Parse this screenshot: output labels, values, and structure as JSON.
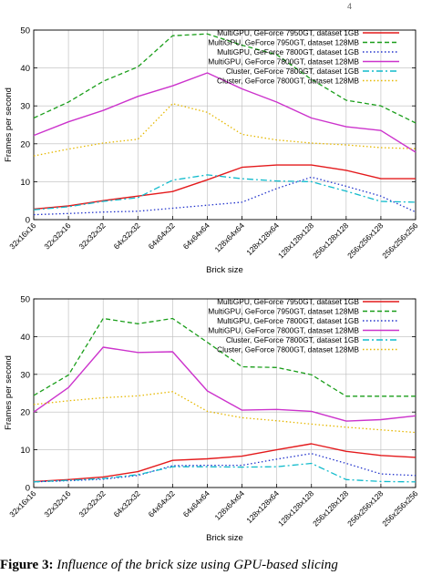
{
  "header": {
    "mark": "4"
  },
  "chart_data": [
    {
      "type": "line",
      "title": "",
      "xlabel": "Brick size",
      "ylabel": "Frames per second",
      "ylim": [
        0,
        50
      ],
      "yticks": [
        0,
        10,
        20,
        30,
        40,
        50
      ],
      "grid": true,
      "legend_position": "top-right",
      "categories": [
        "32x16x16",
        "32x32x16",
        "32x32x32",
        "64x32x32",
        "64x64x32",
        "64x64x64",
        "128x64x64",
        "128x128x64",
        "128x128x128",
        "256x128x128",
        "256x256x128",
        "256x256x256"
      ],
      "series": [
        {
          "name": "MultiGPU, GeForce 7950GT, dataset 1GB",
          "color": "#e41a1c",
          "dash": "solid",
          "values": [
            2.8,
            3.6,
            5.0,
            6.2,
            7.4,
            10.5,
            13.8,
            14.4,
            14.4,
            13.0,
            10.8,
            10.8
          ]
        },
        {
          "name": "MultiGPU, GeForce 7950GT, dataset 128MB",
          "color": "#1a9e1a",
          "dash": "dashed",
          "values": [
            26.8,
            31.0,
            36.5,
            40.3,
            48.5,
            49.0,
            46.0,
            43.5,
            37.0,
            31.5,
            30.0,
            25.5
          ]
        },
        {
          "name": "MultiGPU, GeForce 7800GT, dataset 1GB",
          "color": "#2233cc",
          "dash": "dotted",
          "values": [
            1.3,
            1.6,
            2.0,
            2.2,
            3.0,
            3.8,
            4.6,
            8.2,
            11.2,
            8.8,
            6.2,
            2.0
          ]
        },
        {
          "name": "MultiGPU, GeForce 7800GT, dataset 128MB",
          "color": "#cc33cc",
          "dash": "solid",
          "values": [
            22.2,
            25.8,
            28.8,
            32.5,
            35.3,
            38.7,
            34.5,
            31.0,
            26.8,
            24.5,
            23.5,
            17.8
          ]
        },
        {
          "name": "Cluster, GeForce 7800GT, dataset 1GB",
          "color": "#11bbcc",
          "dash": "dashdot",
          "values": [
            2.6,
            3.4,
            4.8,
            5.8,
            10.4,
            11.8,
            10.8,
            10.2,
            10.0,
            7.5,
            4.8,
            4.6
          ]
        },
        {
          "name": "Cluster, GeForce 7800GT, dataset 128MB",
          "color": "#e6b800",
          "dash": "dotted",
          "values": [
            16.8,
            18.6,
            20.2,
            21.2,
            30.6,
            28.3,
            22.5,
            21.0,
            20.2,
            19.7,
            19.0,
            18.7
          ]
        }
      ]
    },
    {
      "type": "line",
      "title": "",
      "xlabel": "Brick size",
      "ylabel": "Frames per second",
      "ylim": [
        0,
        50
      ],
      "yticks": [
        0,
        10,
        20,
        30,
        40,
        50
      ],
      "grid": true,
      "legend_position": "top-right",
      "categories": [
        "32x16x16",
        "32x32x16",
        "32x32x32",
        "64x32x32",
        "64x64x32",
        "64x64x64",
        "128x64x64",
        "128x128x64",
        "128x128x128",
        "256x128x128",
        "256x256x128",
        "256x256x256"
      ],
      "series": [
        {
          "name": "MultiGPU, GeForce 7950GT, dataset 1GB",
          "color": "#e41a1c",
          "dash": "solid",
          "values": [
            1.6,
            2.1,
            2.8,
            4.2,
            7.2,
            7.6,
            8.3,
            10.0,
            11.6,
            9.6,
            8.5,
            8.0
          ]
        },
        {
          "name": "MultiGPU, GeForce 7950GT, dataset 128MB",
          "color": "#1a9e1a",
          "dash": "dashed",
          "values": [
            24.4,
            29.8,
            44.8,
            43.4,
            44.8,
            38.5,
            32.0,
            31.8,
            29.9,
            24.2,
            24.2,
            24.2
          ]
        },
        {
          "name": "MultiGPU, GeForce 7800GT, dataset 1GB",
          "color": "#2233cc",
          "dash": "dotted",
          "values": [
            1.5,
            1.8,
            2.2,
            3.2,
            5.8,
            5.9,
            5.9,
            7.5,
            9.0,
            6.4,
            3.6,
            3.2
          ]
        },
        {
          "name": "MultiGPU, GeForce 7800GT, dataset 128MB",
          "color": "#cc33cc",
          "dash": "solid",
          "values": [
            20.0,
            26.5,
            37.2,
            35.8,
            36.0,
            25.6,
            20.5,
            20.7,
            20.2,
            17.6,
            18.0,
            19.0
          ]
        },
        {
          "name": "Cluster, GeForce 7800GT, dataset 1GB",
          "color": "#11bbcc",
          "dash": "dashdot",
          "values": [
            1.5,
            1.9,
            2.4,
            3.4,
            5.5,
            5.5,
            5.4,
            5.5,
            6.4,
            2.1,
            1.6,
            1.5
          ]
        },
        {
          "name": "Cluster, GeForce 7800GT, dataset 128MB",
          "color": "#e6b800",
          "dash": "dotted",
          "values": [
            22.0,
            23.0,
            23.8,
            24.3,
            25.4,
            20.2,
            18.5,
            17.7,
            16.8,
            16.0,
            15.3,
            14.6
          ]
        }
      ]
    }
  ],
  "caption": {
    "label": "Figure 3:",
    "text": " Influence of the brick size using GPU-based slicing"
  }
}
